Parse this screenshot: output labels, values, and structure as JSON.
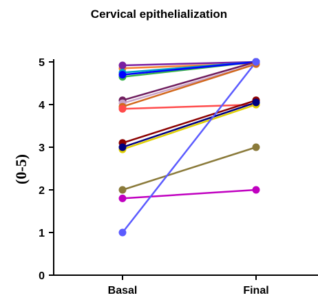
{
  "chart_data": {
    "type": "line",
    "title": "Cervical epithelialization",
    "xlabel": "",
    "ylabel": "(0-5)",
    "categories": [
      "Basal",
      "Final"
    ],
    "ylim": [
      0,
      5
    ],
    "yticks": [
      0,
      1,
      2,
      3,
      4,
      5
    ],
    "grid": false,
    "legend": "none",
    "series": [
      {
        "color": "#f58231",
        "values": [
          4.85,
          4.97
        ]
      },
      {
        "color": "#7a1fa2",
        "values": [
          4.92,
          5.0
        ]
      },
      {
        "color": "#3cb44b",
        "values": [
          4.65,
          5.0
        ]
      },
      {
        "color": "#00a0c8",
        "values": [
          4.75,
          5.0
        ]
      },
      {
        "color": "#0000ff",
        "values": [
          4.7,
          5.0
        ]
      },
      {
        "color": "#6f1d5e",
        "values": [
          4.1,
          5.0
        ]
      },
      {
        "color": "#c8a2c8",
        "values": [
          4.03,
          4.95
        ]
      },
      {
        "color": "#d2691e",
        "values": [
          3.95,
          4.95
        ]
      },
      {
        "color": "#ff4b4b",
        "values": [
          3.9,
          4.0
        ]
      },
      {
        "color": "#8b0000",
        "values": [
          3.1,
          4.1
        ]
      },
      {
        "color": "#e0d000",
        "values": [
          2.95,
          4.0
        ]
      },
      {
        "color": "#000080",
        "values": [
          3.0,
          4.05
        ]
      },
      {
        "color": "#8a7a3a",
        "values": [
          2.0,
          3.0
        ]
      },
      {
        "color": "#c000c0",
        "values": [
          1.8,
          2.0
        ]
      },
      {
        "color": "#5b5bff",
        "values": [
          1.0,
          5.0
        ]
      }
    ]
  }
}
